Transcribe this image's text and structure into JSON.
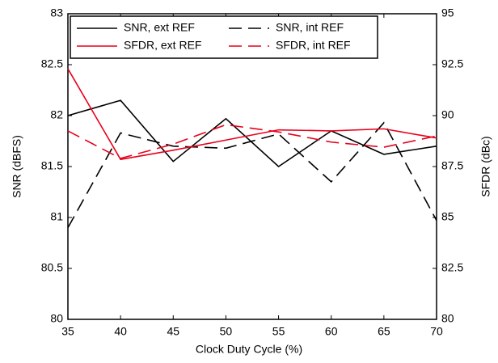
{
  "chart_data": {
    "type": "line",
    "x": [
      35,
      40,
      45,
      50,
      55,
      60,
      65,
      70
    ],
    "xlabel": "Clock Duty Cycle (%)",
    "ylabel": "SNR (dBFS)",
    "y2label": "SFDR (dBc)",
    "xlim": [
      35,
      70
    ],
    "xticks": [
      35,
      40,
      45,
      50,
      55,
      60,
      65,
      70
    ],
    "ylim": [
      80,
      83
    ],
    "yticks": [
      80,
      80.5,
      81,
      81.5,
      82,
      82.5,
      83
    ],
    "y2lim": [
      80,
      95
    ],
    "y2ticks": [
      80,
      82.5,
      85,
      87.5,
      90,
      92.5,
      95
    ],
    "legend": "top-left",
    "series": [
      {
        "name": "SNR, ext REF",
        "color": "#000000",
        "dash": false,
        "values": [
          82.0,
          82.15,
          81.55,
          81.97,
          81.5,
          81.85,
          81.62,
          81.7
        ]
      },
      {
        "name": "SNR, int REF",
        "color": "#000000",
        "dash": true,
        "values": [
          80.9,
          81.83,
          81.7,
          81.68,
          81.82,
          81.35,
          81.93,
          80.97
        ]
      },
      {
        "name": "SFDR, ext REF",
        "color": "#e8001c",
        "dash": false,
        "axis": "y2",
        "values": [
          92.3,
          87.85,
          88.3,
          88.8,
          89.3,
          89.25,
          89.35,
          88.9
        ]
      },
      {
        "name": "SFDR, int REF",
        "color": "#e8001c",
        "dash": true,
        "axis": "y2",
        "values": [
          89.25,
          87.9,
          88.6,
          89.55,
          89.2,
          88.7,
          88.45,
          89.0
        ]
      }
    ]
  }
}
